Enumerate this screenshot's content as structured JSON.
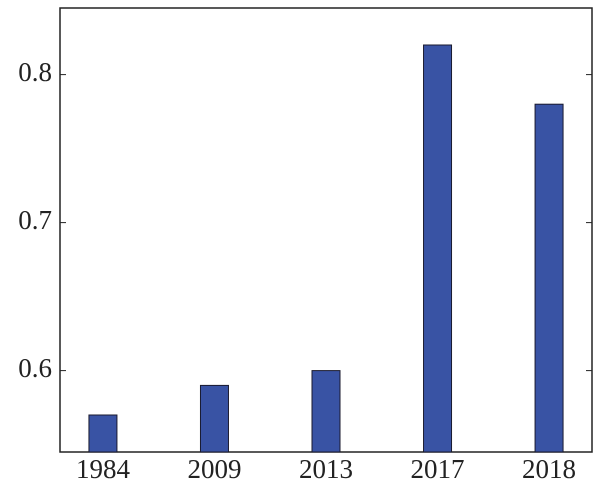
{
  "chart_data": {
    "type": "bar",
    "categories": [
      "1984",
      "2009",
      "2013",
      "2017",
      "2018"
    ],
    "values": [
      0.57,
      0.59,
      0.6,
      0.82,
      0.78
    ],
    "color": "#3953a4",
    "ylim": [
      0.545,
      0.845
    ],
    "yticks": [
      0.6,
      0.7,
      0.8
    ],
    "grid": false
  }
}
